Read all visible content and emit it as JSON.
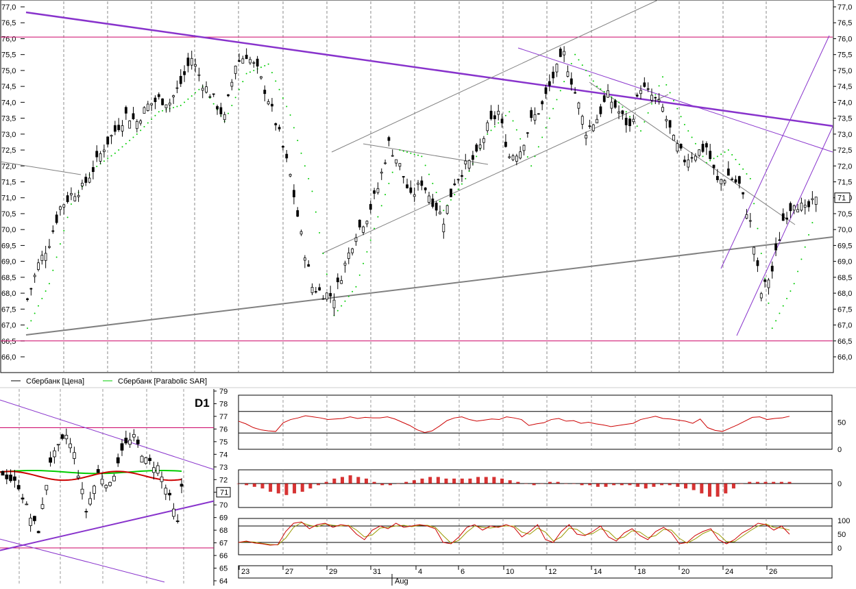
{
  "colors": {
    "up_candle": "#ffffff",
    "down_candle": "#000000",
    "sar": "#00cc00",
    "resistance": "#cc0066",
    "trend_purple": "#8833cc",
    "trend_gray": "#808080",
    "rsi": "#cc0000",
    "macd_hist": "#cc0000",
    "stoch_k": "#cc0000",
    "stoch_d": "#999900",
    "ma_green": "#00cc00",
    "ma_red": "#cc0000"
  },
  "chart_data": [
    {
      "type": "candlestick",
      "name": "main",
      "yticks": [
        "66,0",
        "66,5",
        "67,0",
        "67,5",
        "68,0",
        "68,5",
        "69,0",
        "69,5",
        "70,0",
        "70,5",
        "71,0",
        "71,5",
        "72,0",
        "72,5",
        "73,0",
        "73,5",
        "74,0",
        "74,5",
        "75,0",
        "75,5",
        "76,0",
        "76,5",
        "77,0"
      ],
      "ylim": [
        66.0,
        77.0
      ],
      "current_price_label": "71",
      "current_price": 71.0,
      "horizontal_levels": [
        76.05,
        66.5
      ],
      "legend": [
        {
          "label": "Сбербанк [Цена]",
          "color": "#000000"
        },
        {
          "label": "Сбербанк [Parabolic SAR]",
          "color": "#00cc00"
        }
      ],
      "close_path": [
        [
          0,
          67.8
        ],
        [
          3,
          68.9
        ],
        [
          6,
          69.6
        ],
        [
          9,
          70.7
        ],
        [
          12,
          71.1
        ],
        [
          15,
          71.3
        ],
        [
          18,
          71.9
        ],
        [
          21,
          72.6
        ],
        [
          24,
          73.1
        ],
        [
          27,
          73.6
        ],
        [
          30,
          73.4
        ],
        [
          33,
          73.9
        ],
        [
          36,
          74.1
        ],
        [
          39,
          74.0
        ],
        [
          42,
          74.6
        ],
        [
          45,
          75.4
        ],
        [
          48,
          74.6
        ],
        [
          51,
          74.1
        ],
        [
          54,
          73.5
        ],
        [
          57,
          75.2
        ],
        [
          60,
          75.5
        ],
        [
          63,
          75.0
        ],
        [
          66,
          74.1
        ],
        [
          69,
          73.0
        ],
        [
          72,
          71.7
        ],
        [
          75,
          69.8
        ],
        [
          78,
          68.2
        ],
        [
          81,
          68.0
        ],
        [
          84,
          67.9
        ],
        [
          87,
          68.9
        ],
        [
          90,
          69.9
        ],
        [
          93,
          70.4
        ],
        [
          96,
          71.3
        ],
        [
          99,
          72.7
        ],
        [
          102,
          72.0
        ],
        [
          105,
          71.0
        ],
        [
          108,
          71.5
        ],
        [
          111,
          70.9
        ],
        [
          114,
          70.3
        ],
        [
          117,
          71.5
        ],
        [
          120,
          72.0
        ],
        [
          123,
          72.3
        ],
        [
          126,
          73.2
        ],
        [
          129,
          73.7
        ],
        [
          132,
          72.3
        ],
        [
          135,
          72.5
        ],
        [
          138,
          73.4
        ],
        [
          141,
          73.9
        ],
        [
          144,
          74.8
        ],
        [
          147,
          75.5
        ],
        [
          150,
          74.3
        ],
        [
          153,
          73.1
        ],
        [
          156,
          73.5
        ],
        [
          159,
          74.2
        ],
        [
          162,
          73.7
        ],
        [
          165,
          73.2
        ],
        [
          168,
          74.5
        ],
        [
          171,
          74.2
        ],
        [
          174,
          73.8
        ],
        [
          177,
          72.8
        ],
        [
          180,
          72.2
        ],
        [
          183,
          72.4
        ],
        [
          186,
          72.6
        ],
        [
          189,
          71.5
        ],
        [
          192,
          71.7
        ],
        [
          195,
          71.4
        ],
        [
          198,
          70.2
        ],
        [
          201,
          68.0
        ],
        [
          204,
          68.7
        ],
        [
          207,
          70.3
        ],
        [
          210,
          70.9
        ],
        [
          213,
          70.6
        ],
        [
          216,
          70.9
        ]
      ],
      "sar_dots": [
        [
          0,
          66.9
        ],
        [
          6,
          68.3
        ],
        [
          12,
          70.8
        ],
        [
          18,
          71.9
        ],
        [
          24,
          72.4
        ],
        [
          30,
          73.0
        ],
        [
          36,
          73.7
        ],
        [
          42,
          73.9
        ],
        [
          48,
          74.5
        ],
        [
          54,
          73.4
        ],
        [
          60,
          74.9
        ],
        [
          66,
          75.2
        ],
        [
          72,
          73.6
        ],
        [
          78,
          71.2
        ],
        [
          84,
          67.3
        ],
        [
          90,
          68.2
        ],
        [
          96,
          70.4
        ],
        [
          102,
          72.5
        ],
        [
          108,
          72.3
        ],
        [
          114,
          70.6
        ],
        [
          120,
          71.6
        ],
        [
          126,
          73.0
        ],
        [
          132,
          73.7
        ],
        [
          138,
          72.0
        ],
        [
          144,
          73.8
        ],
        [
          150,
          75.5
        ],
        [
          156,
          74.5
        ],
        [
          162,
          74.0
        ],
        [
          168,
          73.1
        ],
        [
          174,
          74.8
        ],
        [
          180,
          73.3
        ],
        [
          186,
          72.1
        ],
        [
          192,
          72.5
        ],
        [
          198,
          71.6
        ],
        [
          204,
          66.9
        ],
        [
          210,
          68.3
        ],
        [
          216,
          70.6
        ]
      ]
    },
    {
      "type": "candlestick",
      "name": "weekly-inset",
      "timeframe_label": "D1",
      "yticks": [
        "64",
        "65",
        "66",
        "67",
        "68",
        "69",
        "70",
        "71",
        "72",
        "73",
        "74",
        "75",
        "76",
        "77",
        "78",
        "79"
      ],
      "ylim": [
        64,
        79
      ],
      "current_price_label": "71",
      "ma_green_level": 72.6,
      "ma_red_level": 72.3
    },
    {
      "type": "line",
      "name": "rsi",
      "yticks": [
        "0",
        "50"
      ],
      "levels": [
        30,
        70
      ],
      "values": [
        52,
        47,
        40,
        36,
        34,
        33,
        49,
        55,
        58,
        62,
        60,
        58,
        55,
        56,
        57,
        60,
        57,
        59,
        58,
        58,
        60,
        56,
        50,
        44,
        36,
        31,
        34,
        43,
        53,
        58,
        60,
        55,
        52,
        54,
        56,
        55,
        60,
        58,
        55,
        44,
        47,
        49,
        55,
        57,
        52,
        53,
        48,
        50,
        47,
        45,
        42,
        44,
        46,
        48,
        55,
        58,
        61,
        57,
        56,
        54,
        52,
        48,
        56,
        40,
        35,
        33,
        39,
        45,
        52,
        59,
        60,
        55,
        57,
        58,
        61
      ]
    },
    {
      "type": "bar",
      "name": "macd-histogram",
      "yticks": [
        "0"
      ],
      "values": [
        0,
        -0.1,
        -0.2,
        -0.3,
        -0.5,
        -0.6,
        -0.7,
        -0.6,
        -0.5,
        -0.3,
        -0.1,
        0.1,
        0.3,
        0.4,
        0.5,
        0.4,
        0.3,
        0.1,
        -0.1,
        -0.1,
        0,
        0.1,
        0.2,
        0.3,
        0.4,
        0.4,
        0.3,
        0.3,
        0.3,
        0.3,
        0.4,
        0.4,
        0.4,
        0.3,
        0.2,
        0.1,
        0,
        -0.1,
        0,
        0.1,
        0.1,
        0,
        0,
        -0.1,
        -0.1,
        -0.2,
        -0.2,
        -0.1,
        -0.1,
        -0.1,
        -0.2,
        -0.3,
        -0.2,
        -0.1,
        -0.1,
        -0.2,
        -0.3,
        -0.4,
        -0.6,
        -0.8,
        -0.8,
        -0.6,
        -0.3,
        0,
        0.1,
        0.1,
        0.1,
        0.1,
        0.1,
        0.1
      ]
    },
    {
      "type": "line",
      "name": "stochastic",
      "yticks": [
        "0",
        "50",
        "100"
      ],
      "levels": [
        20,
        80
      ],
      "values": [
        20,
        25,
        18,
        15,
        10,
        12,
        60,
        90,
        95,
        70,
        85,
        90,
        75,
        85,
        80,
        50,
        30,
        65,
        80,
        70,
        90,
        75,
        80,
        85,
        80,
        70,
        20,
        15,
        40,
        75,
        85,
        65,
        80,
        75,
        85,
        75,
        40,
        60,
        85,
        30,
        20,
        60,
        85,
        50,
        45,
        60,
        80,
        40,
        25,
        55,
        70,
        45,
        30,
        60,
        75,
        55,
        15,
        20,
        45,
        60,
        70,
        30,
        15,
        30,
        55,
        70,
        90,
        85,
        65,
        80,
        50
      ]
    }
  ],
  "xaxis": {
    "tick_labels": [
      "23",
      "27",
      "29",
      "31",
      "4",
      "6",
      "8",
      "10",
      "12",
      "14",
      "18",
      "20",
      "24",
      "26"
    ],
    "month_label": "Aug"
  }
}
